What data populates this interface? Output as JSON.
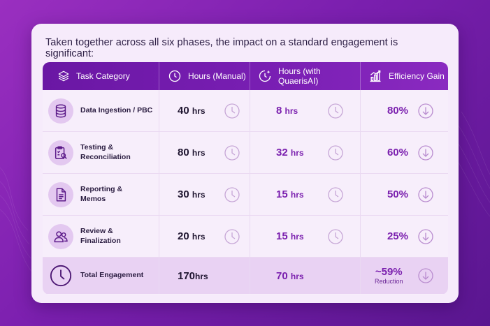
{
  "headline": "Taken together across all six phases, the impact on a standard engagement is significant:",
  "columns": {
    "category": "Task Category",
    "manual": "Hours (Manual)",
    "quaeris": "Hours (with QuaerisAI)",
    "gain": "Efficiency Gain"
  },
  "rows": [
    {
      "icon": "database-icon",
      "label_line1": "Data Ingestion / PBC",
      "label_line2": "",
      "manual": "40",
      "manual_unit": "hrs",
      "quaeris": "8",
      "quaeris_unit": "hrs",
      "gain": "80%"
    },
    {
      "icon": "clipboard-search-icon",
      "label_line1": "Testing &",
      "label_line2": "Reconciliation",
      "manual": "80",
      "manual_unit": "hrs",
      "quaeris": "32",
      "quaeris_unit": "hrs",
      "gain": "60%"
    },
    {
      "icon": "document-icon",
      "label_line1": "Reporting &",
      "label_line2": "Memos",
      "manual": "30",
      "manual_unit": "hrs",
      "quaeris": "15",
      "quaeris_unit": "hrs",
      "gain": "50%"
    },
    {
      "icon": "users-icon",
      "label_line1": "Review &",
      "label_line2": "Finalization",
      "manual": "20",
      "manual_unit": "hrs",
      "quaeris": "15",
      "quaeris_unit": "hrs",
      "gain": "25%"
    }
  ],
  "total": {
    "icon": "clock-icon",
    "label": "Total Engagement",
    "manual": "170",
    "manual_unit": "hrs",
    "quaeris": "70",
    "quaeris_unit": "hrs",
    "gain": "~59%",
    "gain_note": "Reduction"
  },
  "colors": {
    "accent": "#7a1fae",
    "header": "#6a17a4",
    "card": "#f6ebfb"
  }
}
